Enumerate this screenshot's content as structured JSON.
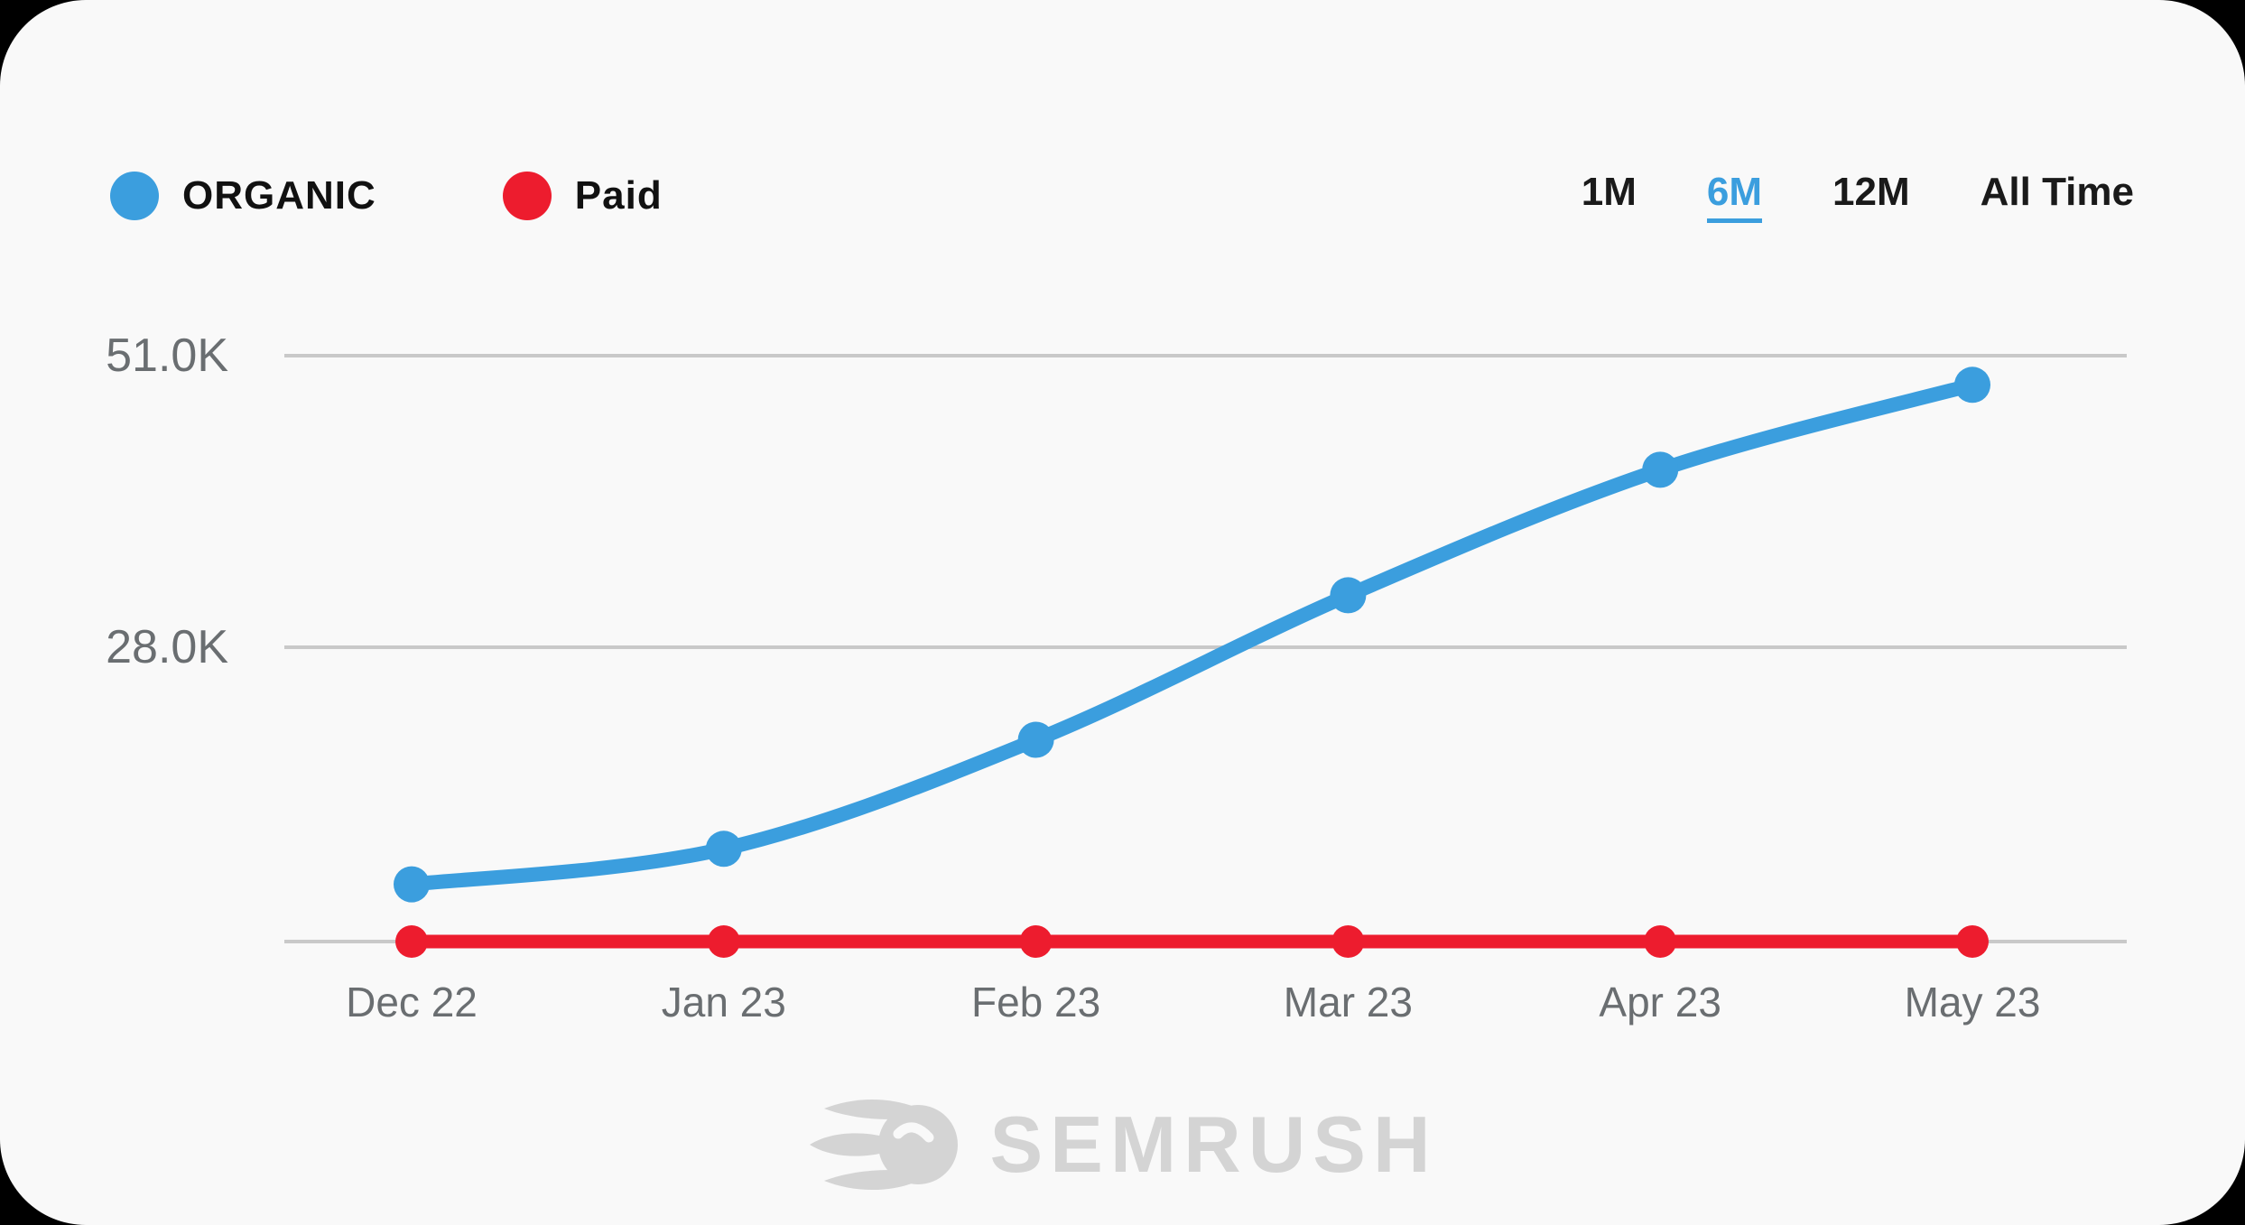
{
  "legend": {
    "items": [
      {
        "label": "ORGANIC",
        "color": "#3b9ede"
      },
      {
        "label": "Paid",
        "color": "#ed1c2e"
      }
    ]
  },
  "ranges": {
    "options": [
      {
        "label": "1M"
      },
      {
        "label": "6M"
      },
      {
        "label": "12M"
      },
      {
        "label": "All Time"
      }
    ],
    "active": "6M",
    "active_index": 1
  },
  "footer": {
    "brand": "SEMRUSH"
  },
  "colors": {
    "organic": "#3b9ede",
    "paid": "#ed1c2e",
    "grid": "#c9c9c9",
    "axis_text": "#6a6e71",
    "background": "#f9f9f9",
    "brand_gray": "#d4d4d4"
  },
  "chart_data": {
    "type": "line",
    "categories": [
      "Dec 22",
      "Jan 23",
      "Feb 23",
      "Mar 23",
      "Apr 23",
      "May 23"
    ],
    "series": [
      {
        "name": "ORGANIC",
        "color": "#3b9ede",
        "values": [
          9300,
          12100,
          20700,
          32100,
          42000,
          48700
        ]
      },
      {
        "name": "Paid",
        "color": "#ed1c2e",
        "values": [
          0,
          0,
          0,
          0,
          0,
          0
        ]
      }
    ],
    "yticks": [
      {
        "label": "51.0K",
        "value": 51000
      },
      {
        "label": "28.0K",
        "value": 28000
      }
    ],
    "ylim": [
      4800,
      53500
    ],
    "grid": "horizontal",
    "legend_position": "top-left",
    "smooth": true
  }
}
